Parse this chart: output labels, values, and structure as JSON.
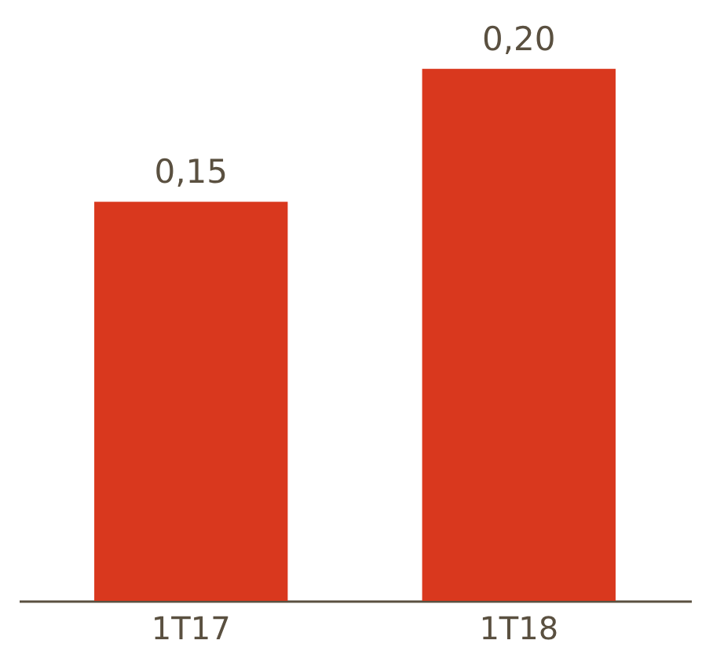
{
  "chart_data": {
    "type": "bar",
    "categories": [
      "1T17",
      "1T18"
    ],
    "values": [
      0.15,
      0.2
    ],
    "value_labels": [
      "0,15",
      "0,20"
    ],
    "color": "#d9381e",
    "grid": false
  }
}
